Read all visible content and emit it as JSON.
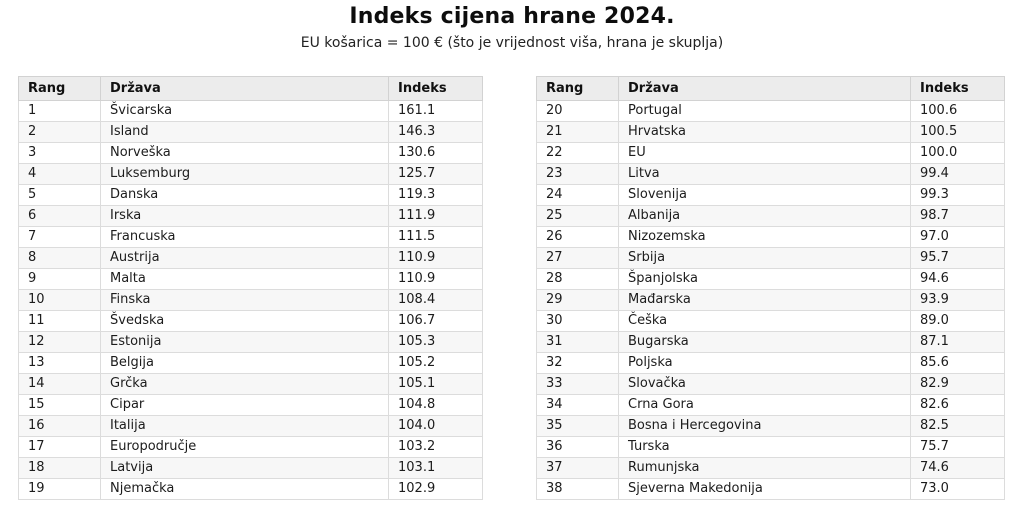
{
  "title": "Indeks cijena hrane 2024.",
  "subtitle": "EU košarica = 100 € (što je vrijednost viša, hrana je skuplja)",
  "chart_data": {
    "type": "table",
    "title": "Indeks cijena hrane 2024.",
    "subtitle": "EU košarica = 100 € (što je vrijednost viša, hrana je skuplja)",
    "columns": [
      "Rang",
      "Država",
      "Indeks"
    ],
    "rows": [
      [
        "1",
        "Švicarska",
        "161.1"
      ],
      [
        "2",
        "Island",
        "146.3"
      ],
      [
        "3",
        "Norveška",
        "130.6"
      ],
      [
        "4",
        "Luksemburg",
        "125.7"
      ],
      [
        "5",
        "Danska",
        "119.3"
      ],
      [
        "6",
        "Irska",
        "111.9"
      ],
      [
        "7",
        "Francuska",
        "111.5"
      ],
      [
        "8",
        "Austrija",
        "110.9"
      ],
      [
        "9",
        "Malta",
        "110.9"
      ],
      [
        "10",
        "Finska",
        "108.4"
      ],
      [
        "11",
        "Švedska",
        "106.7"
      ],
      [
        "12",
        "Estonija",
        "105.3"
      ],
      [
        "13",
        "Belgija",
        "105.2"
      ],
      [
        "14",
        "Grčka",
        "105.1"
      ],
      [
        "15",
        "Cipar",
        "104.8"
      ],
      [
        "16",
        "Italija",
        "104.0"
      ],
      [
        "17",
        "Europodručje",
        "103.2"
      ],
      [
        "18",
        "Latvija",
        "103.1"
      ],
      [
        "19",
        "Njemačka",
        "102.9"
      ],
      [
        "20",
        "Portugal",
        "100.6"
      ],
      [
        "21",
        "Hrvatska",
        "100.5"
      ],
      [
        "22",
        "EU",
        "100.0"
      ],
      [
        "23",
        "Litva",
        "99.4"
      ],
      [
        "24",
        "Slovenija",
        "99.3"
      ],
      [
        "25",
        "Albanija",
        "98.7"
      ],
      [
        "26",
        "Nizozemska",
        "97.0"
      ],
      [
        "27",
        "Srbija",
        "95.7"
      ],
      [
        "28",
        "Španjolska",
        "94.6"
      ],
      [
        "29",
        "Mađarska",
        "93.9"
      ],
      [
        "30",
        "Češka",
        "89.0"
      ],
      [
        "31",
        "Bugarska",
        "87.1"
      ],
      [
        "32",
        "Poljska",
        "85.6"
      ],
      [
        "33",
        "Slovačka",
        "82.9"
      ],
      [
        "34",
        "Crna Gora",
        "82.6"
      ],
      [
        "35",
        "Bosna i Hercegovina",
        "82.5"
      ],
      [
        "36",
        "Turska",
        "75.7"
      ],
      [
        "37",
        "Rumunjska",
        "74.6"
      ],
      [
        "38",
        "Sjeverna Makedonija",
        "73.0"
      ]
    ],
    "layout": {
      "split": "two side-by-side tables, ranks 1-19 left and 20-38 right",
      "grid": "all cells bordered, even rows striped",
      "legend_position": "none"
    }
  },
  "colors": {
    "background": "#ffffff",
    "header_bg": "#ececec",
    "row_stripe": "#f7f7f7",
    "border": "#d6d6d6",
    "text": "#1a1a1a"
  }
}
